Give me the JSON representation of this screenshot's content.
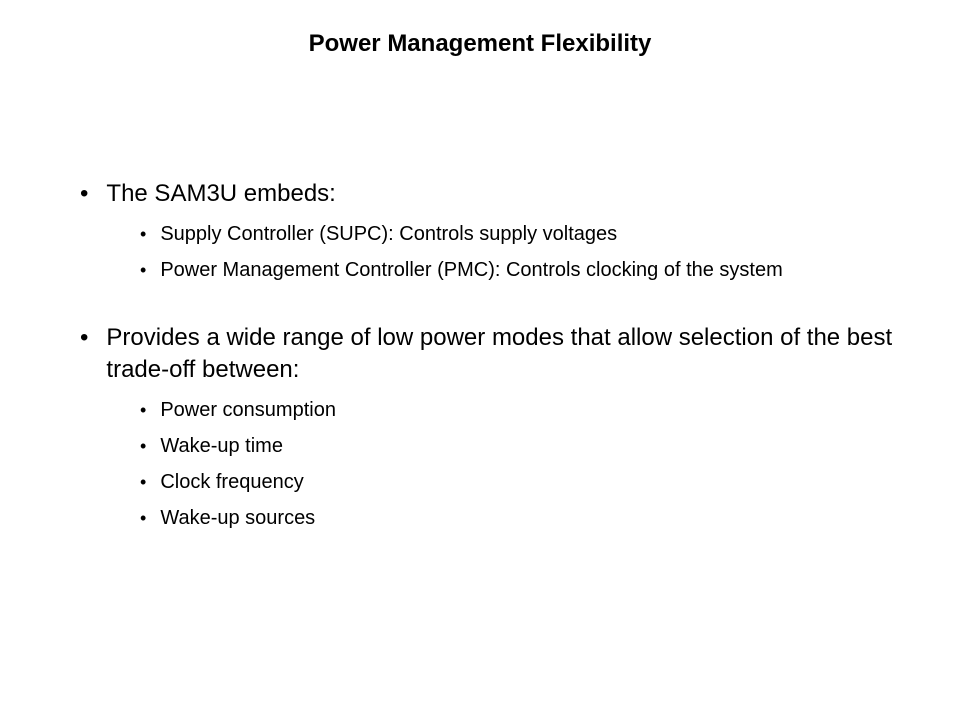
{
  "title": "Power Management Flexibility",
  "title_fontsize": 24,
  "title_fontweight": "bold",
  "title_color": "#000000",
  "background_color": "#ffffff",
  "text_color": "#000000",
  "font_family": "Verdana",
  "main_bullet_fontsize": 24,
  "sub_bullet_fontsize": 20,
  "bullets": [
    {
      "text": "The SAM3U embeds:",
      "subs": [
        "Supply Controller (SUPC): Controls supply voltages",
        "Power Management Controller (PMC): Controls clocking of the system"
      ]
    },
    {
      "text": "Provides a wide range of low power modes that allow selection of the best trade-off between:",
      "subs": [
        "Power consumption",
        "Wake-up time",
        "Clock frequency",
        "Wake-up sources"
      ]
    }
  ]
}
